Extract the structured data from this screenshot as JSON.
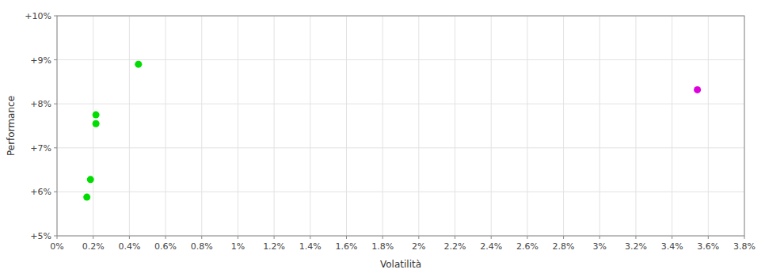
{
  "chart_data": {
    "type": "scatter",
    "xlabel": "Volatilità",
    "ylabel": "Performance",
    "xlim": [
      0.0,
      0.038
    ],
    "ylim": [
      0.05,
      0.1
    ],
    "xticks": [
      {
        "value": 0.0,
        "label": "0%"
      },
      {
        "value": 0.002,
        "label": "0.2%"
      },
      {
        "value": 0.004,
        "label": "0.4%"
      },
      {
        "value": 0.006,
        "label": "0.6%"
      },
      {
        "value": 0.008,
        "label": "0.8%"
      },
      {
        "value": 0.01,
        "label": "1%"
      },
      {
        "value": 0.012,
        "label": "1.2%"
      },
      {
        "value": 0.014,
        "label": "1.4%"
      },
      {
        "value": 0.016,
        "label": "1.6%"
      },
      {
        "value": 0.018,
        "label": "1.8%"
      },
      {
        "value": 0.02,
        "label": "2%"
      },
      {
        "value": 0.022,
        "label": "2.2%"
      },
      {
        "value": 0.024,
        "label": "2.4%"
      },
      {
        "value": 0.026,
        "label": "2.6%"
      },
      {
        "value": 0.028,
        "label": "2.8%"
      },
      {
        "value": 0.03,
        "label": "3%"
      },
      {
        "value": 0.032,
        "label": "3.2%"
      },
      {
        "value": 0.034,
        "label": "3.4%"
      },
      {
        "value": 0.036,
        "label": "3.6%"
      },
      {
        "value": 0.038,
        "label": "3.8%"
      }
    ],
    "yticks": [
      {
        "value": 0.05,
        "label": "+5%"
      },
      {
        "value": 0.06,
        "label": "+6%"
      },
      {
        "value": 0.07,
        "label": "+7%"
      },
      {
        "value": 0.08,
        "label": "+8%"
      },
      {
        "value": 0.09,
        "label": "+9%"
      },
      {
        "value": 0.1,
        "label": "+10%"
      }
    ],
    "grid": true,
    "series": [
      {
        "color": "#00dd00",
        "x": [
          0.0045,
          0.00215,
          0.00215,
          0.00185,
          0.00165
        ],
        "values": [
          0.089,
          0.0775,
          0.0755,
          0.0628,
          0.0588
        ]
      },
      {
        "color": "#dd00dd",
        "x": [
          0.0354
        ],
        "values": [
          0.0832
        ]
      }
    ]
  }
}
